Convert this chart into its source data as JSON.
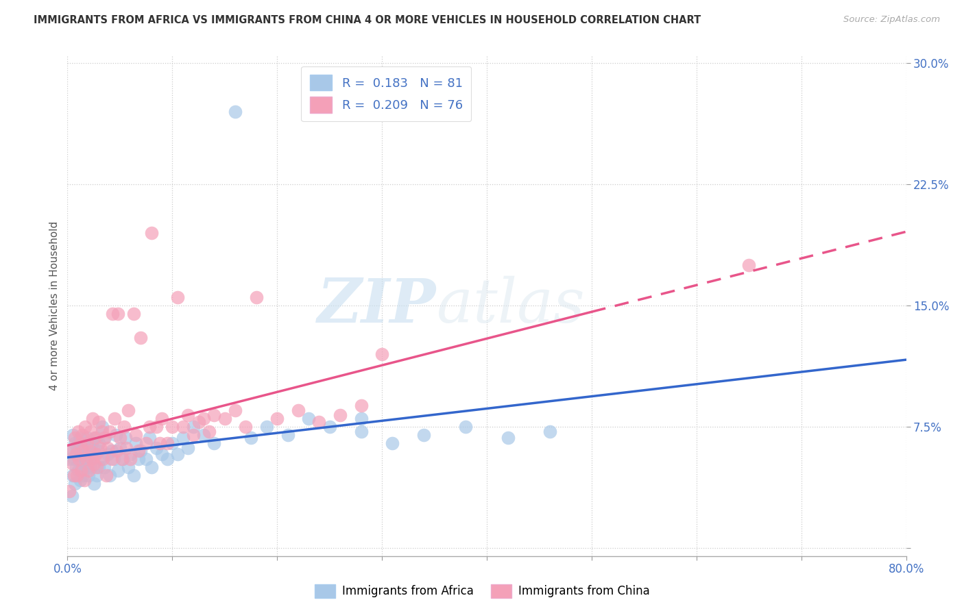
{
  "title": "IMMIGRANTS FROM AFRICA VS IMMIGRANTS FROM CHINA 4 OR MORE VEHICLES IN HOUSEHOLD CORRELATION CHART",
  "source": "Source: ZipAtlas.com",
  "ylabel": "4 or more Vehicles in Household",
  "xlim": [
    0.0,
    0.8
  ],
  "ylim": [
    -0.005,
    0.305
  ],
  "xticks": [
    0.0,
    0.1,
    0.2,
    0.3,
    0.4,
    0.5,
    0.6,
    0.7,
    0.8
  ],
  "yticks": [
    0.0,
    0.075,
    0.15,
    0.225,
    0.3
  ],
  "xtick_labels": [
    "0.0%",
    "",
    "",
    "",
    "",
    "",
    "",
    "",
    "80.0%"
  ],
  "ytick_labels": [
    "",
    "7.5%",
    "15.0%",
    "22.5%",
    "30.0%"
  ],
  "africa_color": "#a8c8e8",
  "china_color": "#f4a0b8",
  "africa_R": 0.183,
  "africa_N": 81,
  "china_R": 0.209,
  "china_N": 76,
  "legend_label_africa": "Immigrants from Africa",
  "legend_label_china": "Immigrants from China",
  "africa_line_color": "#3366cc",
  "china_line_color": "#e8558a",
  "watermark_zip": "ZIP",
  "watermark_atlas": "atlas",
  "background_color": "#ffffff",
  "africa_scatter_x": [
    0.002,
    0.003,
    0.004,
    0.005,
    0.005,
    0.006,
    0.007,
    0.007,
    0.008,
    0.009,
    0.01,
    0.01,
    0.011,
    0.012,
    0.012,
    0.013,
    0.014,
    0.015,
    0.015,
    0.016,
    0.017,
    0.018,
    0.019,
    0.02,
    0.02,
    0.021,
    0.022,
    0.023,
    0.024,
    0.025,
    0.026,
    0.027,
    0.028,
    0.029,
    0.03,
    0.03,
    0.032,
    0.033,
    0.035,
    0.036,
    0.038,
    0.04,
    0.042,
    0.044,
    0.046,
    0.048,
    0.05,
    0.053,
    0.055,
    0.058,
    0.06,
    0.063,
    0.065,
    0.068,
    0.07,
    0.075,
    0.078,
    0.08,
    0.085,
    0.09,
    0.095,
    0.1,
    0.105,
    0.11,
    0.115,
    0.12,
    0.13,
    0.14,
    0.16,
    0.175,
    0.19,
    0.21,
    0.23,
    0.25,
    0.28,
    0.31,
    0.34,
    0.38,
    0.42,
    0.46,
    0.28
  ],
  "africa_scatter_y": [
    0.055,
    0.06,
    0.032,
    0.045,
    0.07,
    0.055,
    0.04,
    0.065,
    0.05,
    0.06,
    0.048,
    0.065,
    0.055,
    0.042,
    0.068,
    0.058,
    0.05,
    0.062,
    0.045,
    0.055,
    0.06,
    0.05,
    0.068,
    0.055,
    0.045,
    0.062,
    0.05,
    0.065,
    0.055,
    0.04,
    0.058,
    0.068,
    0.045,
    0.06,
    0.05,
    0.065,
    0.055,
    0.075,
    0.05,
    0.068,
    0.058,
    0.045,
    0.06,
    0.055,
    0.07,
    0.048,
    0.062,
    0.055,
    0.068,
    0.05,
    0.058,
    0.045,
    0.065,
    0.055,
    0.06,
    0.055,
    0.068,
    0.05,
    0.062,
    0.058,
    0.055,
    0.065,
    0.058,
    0.068,
    0.062,
    0.075,
    0.07,
    0.065,
    0.27,
    0.068,
    0.075,
    0.07,
    0.08,
    0.075,
    0.072,
    0.065,
    0.07,
    0.075,
    0.068,
    0.072,
    0.08
  ],
  "china_scatter_x": [
    0.002,
    0.003,
    0.005,
    0.006,
    0.007,
    0.008,
    0.009,
    0.01,
    0.011,
    0.012,
    0.013,
    0.014,
    0.015,
    0.016,
    0.017,
    0.018,
    0.019,
    0.02,
    0.021,
    0.022,
    0.023,
    0.024,
    0.025,
    0.026,
    0.027,
    0.028,
    0.03,
    0.031,
    0.033,
    0.034,
    0.035,
    0.037,
    0.038,
    0.04,
    0.042,
    0.043,
    0.045,
    0.047,
    0.048,
    0.05,
    0.052,
    0.054,
    0.056,
    0.058,
    0.06,
    0.063,
    0.065,
    0.068,
    0.07,
    0.075,
    0.078,
    0.08,
    0.085,
    0.088,
    0.09,
    0.095,
    0.1,
    0.105,
    0.11,
    0.115,
    0.12,
    0.125,
    0.13,
    0.135,
    0.14,
    0.15,
    0.16,
    0.17,
    0.18,
    0.2,
    0.22,
    0.24,
    0.26,
    0.28,
    0.3,
    0.65
  ],
  "china_scatter_y": [
    0.035,
    0.06,
    0.052,
    0.045,
    0.068,
    0.058,
    0.045,
    0.072,
    0.055,
    0.065,
    0.048,
    0.07,
    0.06,
    0.042,
    0.075,
    0.055,
    0.065,
    0.048,
    0.06,
    0.072,
    0.055,
    0.08,
    0.052,
    0.068,
    0.058,
    0.05,
    0.078,
    0.062,
    0.072,
    0.055,
    0.068,
    0.045,
    0.062,
    0.072,
    0.055,
    0.145,
    0.08,
    0.06,
    0.145,
    0.068,
    0.055,
    0.075,
    0.062,
    0.085,
    0.055,
    0.145,
    0.07,
    0.06,
    0.13,
    0.065,
    0.075,
    0.195,
    0.075,
    0.065,
    0.08,
    0.065,
    0.075,
    0.155,
    0.075,
    0.082,
    0.07,
    0.078,
    0.08,
    0.072,
    0.082,
    0.08,
    0.085,
    0.075,
    0.155,
    0.08,
    0.085,
    0.078,
    0.082,
    0.088,
    0.12,
    0.175
  ]
}
